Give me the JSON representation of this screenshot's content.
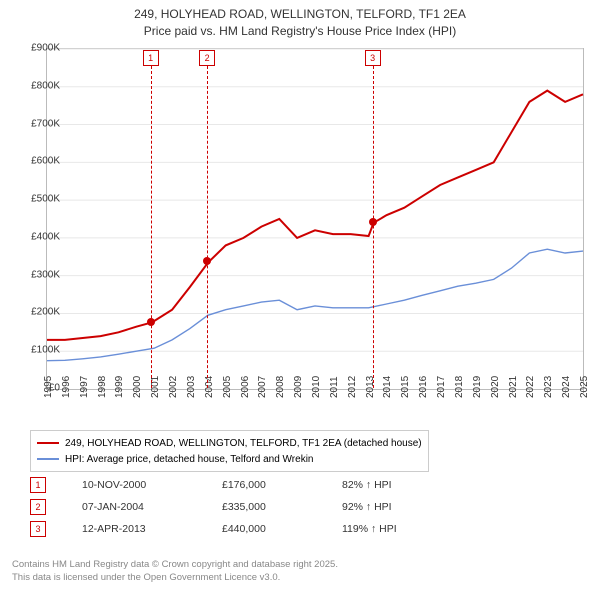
{
  "title_line1": "249, HOLYHEAD ROAD, WELLINGTON, TELFORD, TF1 2EA",
  "title_line2": "Price paid vs. HM Land Registry's House Price Index (HPI)",
  "chart": {
    "type": "line",
    "background_color": "#ffffff",
    "grid_color": "#e8e8e8",
    "border_color": "#bbbbbb",
    "ylim": [
      0,
      900000
    ],
    "ytick_step": 100000,
    "yticks": [
      "£0",
      "£100K",
      "£200K",
      "£300K",
      "£400K",
      "£500K",
      "£600K",
      "£700K",
      "£800K",
      "£900K"
    ],
    "xlim": [
      1995,
      2025
    ],
    "xticks": [
      1995,
      1996,
      1997,
      1998,
      1999,
      2000,
      2001,
      2002,
      2003,
      2004,
      2005,
      2006,
      2007,
      2008,
      2009,
      2010,
      2011,
      2012,
      2013,
      2014,
      2015,
      2016,
      2017,
      2018,
      2019,
      2020,
      2021,
      2022,
      2023,
      2024,
      2025
    ],
    "series": [
      {
        "name": "249, HOLYHEAD ROAD, WELLINGTON, TELFORD, TF1 2EA (detached house)",
        "color": "#cc0000",
        "line_width": 2,
        "data": [
          [
            1995,
            130000
          ],
          [
            1996,
            130000
          ],
          [
            1997,
            135000
          ],
          [
            1998,
            140000
          ],
          [
            1999,
            150000
          ],
          [
            2000,
            165000
          ],
          [
            2000.86,
            176000
          ],
          [
            2001,
            180000
          ],
          [
            2002,
            210000
          ],
          [
            2003,
            270000
          ],
          [
            2004.02,
            335000
          ],
          [
            2005,
            380000
          ],
          [
            2006,
            400000
          ],
          [
            2007,
            430000
          ],
          [
            2008,
            450000
          ],
          [
            2009,
            400000
          ],
          [
            2010,
            420000
          ],
          [
            2011,
            410000
          ],
          [
            2012,
            410000
          ],
          [
            2013,
            405000
          ],
          [
            2013.28,
            440000
          ],
          [
            2014,
            460000
          ],
          [
            2015,
            480000
          ],
          [
            2016,
            510000
          ],
          [
            2017,
            540000
          ],
          [
            2018,
            560000
          ],
          [
            2019,
            580000
          ],
          [
            2020,
            600000
          ],
          [
            2021,
            680000
          ],
          [
            2022,
            760000
          ],
          [
            2023,
            790000
          ],
          [
            2024,
            760000
          ],
          [
            2025,
            780000
          ]
        ]
      },
      {
        "name": "HPI: Average price, detached house, Telford and Wrekin",
        "color": "#6a8fd8",
        "line_width": 1.4,
        "data": [
          [
            1995,
            75000
          ],
          [
            1996,
            76000
          ],
          [
            1997,
            80000
          ],
          [
            1998,
            85000
          ],
          [
            1999,
            92000
          ],
          [
            2000,
            100000
          ],
          [
            2001,
            108000
          ],
          [
            2002,
            130000
          ],
          [
            2003,
            160000
          ],
          [
            2004,
            195000
          ],
          [
            2005,
            210000
          ],
          [
            2006,
            220000
          ],
          [
            2007,
            230000
          ],
          [
            2008,
            235000
          ],
          [
            2009,
            210000
          ],
          [
            2010,
            220000
          ],
          [
            2011,
            215000
          ],
          [
            2012,
            215000
          ],
          [
            2013,
            215000
          ],
          [
            2014,
            225000
          ],
          [
            2015,
            235000
          ],
          [
            2016,
            248000
          ],
          [
            2017,
            260000
          ],
          [
            2018,
            272000
          ],
          [
            2019,
            280000
          ],
          [
            2020,
            290000
          ],
          [
            2021,
            320000
          ],
          [
            2022,
            360000
          ],
          [
            2023,
            370000
          ],
          [
            2024,
            360000
          ],
          [
            2025,
            365000
          ]
        ]
      }
    ],
    "markers": [
      {
        "num": "1",
        "year": 2000.86,
        "price": 176000
      },
      {
        "num": "2",
        "year": 2004.02,
        "price": 335000
      },
      {
        "num": "3",
        "year": 2013.28,
        "price": 440000
      }
    ]
  },
  "legend": {
    "items": [
      {
        "label": "249, HOLYHEAD ROAD, WELLINGTON, TELFORD, TF1 2EA (detached house)",
        "color": "#cc0000",
        "width": 2
      },
      {
        "label": "HPI: Average price, detached house, Telford and Wrekin",
        "color": "#6a8fd8",
        "width": 1.4
      }
    ]
  },
  "transactions": [
    {
      "num": "1",
      "date": "10-NOV-2000",
      "price": "£176,000",
      "pct": "82% ↑ HPI"
    },
    {
      "num": "2",
      "date": "07-JAN-2004",
      "price": "£335,000",
      "pct": "92% ↑ HPI"
    },
    {
      "num": "3",
      "date": "12-APR-2013",
      "price": "£440,000",
      "pct": "119% ↑ HPI"
    }
  ],
  "footer_line1": "Contains HM Land Registry data © Crown copyright and database right 2025.",
  "footer_line2": "This data is licensed under the Open Government Licence v3.0."
}
